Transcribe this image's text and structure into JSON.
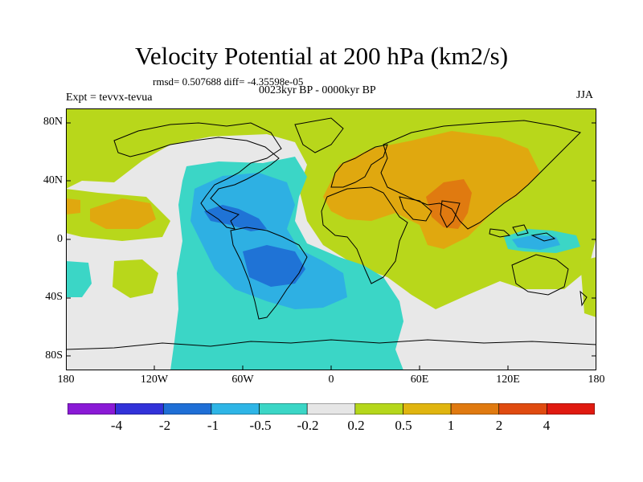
{
  "title": "Velocity Potential at 200 hPa (km2/s)",
  "stats_line": "rmsd= 0.507688 diff= -4.35598e-05",
  "period": "0023kyr BP - 0000kyr BP",
  "experiment": "Expt = tevvx-tevua",
  "season": "JJA",
  "map": {
    "projection": "cylindrical equidistant",
    "ocean_background": "#e8e8e8",
    "coastline_color": "#000000",
    "y_ticks": [
      "80N",
      "40N",
      "0",
      "40S",
      "80S"
    ],
    "x_ticks": [
      "180",
      "120W",
      "60W",
      "0",
      "60E",
      "120E",
      "180"
    ]
  },
  "colorbar": {
    "colors": [
      "#8a1ad6",
      "#3232d9",
      "#1f6fd6",
      "#2eb5e6",
      "#3bd6c6",
      "#e6e6e6",
      "#b5d71b",
      "#e0b50f",
      "#e07a10",
      "#e04b10",
      "#e01a10"
    ],
    "labels": [
      "-4",
      "-2",
      "-1",
      "-0.5",
      "-0.2",
      "0.2",
      "0.5",
      "1",
      "2",
      "4"
    ]
  }
}
